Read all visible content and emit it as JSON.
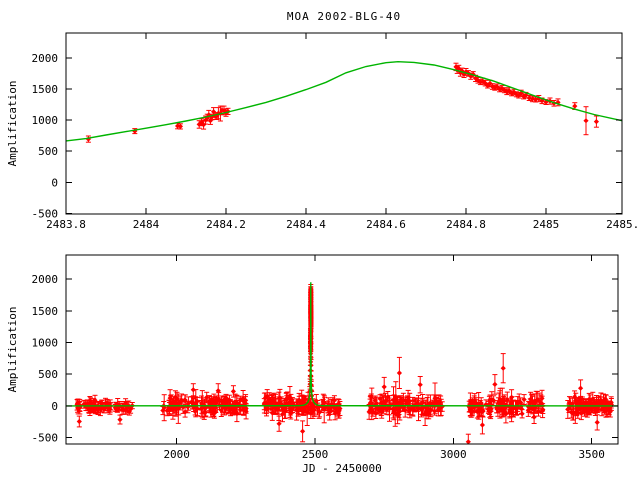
{
  "figure": {
    "title": "MOA 2002-BLG-40",
    "background": "#ffffff",
    "axis_color": "#000000",
    "data_color": "#ff0000",
    "model_color": "#00b400"
  },
  "chart_data": [
    {
      "type": "scatter",
      "name": "peak-zoom-panel",
      "xlabel": "",
      "ylabel": "Amplification",
      "xlim": [
        2483.8,
        2485.19
      ],
      "ylim": [
        -510,
        2400
      ],
      "xticks": [
        2483.8,
        2484,
        2484.2,
        2484.4,
        2484.6,
        2484.8,
        2485,
        2485.2
      ],
      "xtick_labels": [
        "2483.8",
        "2484",
        "2484.2",
        "2484.4",
        "2484.6",
        "2484.8",
        "2485",
        "2485.2"
      ],
      "yticks": [
        -500,
        0,
        500,
        1000,
        1500,
        2000
      ],
      "ytick_labels": [
        "-500",
        "0",
        "500",
        "1000",
        "1500",
        "2000"
      ],
      "legend": null,
      "grid": false,
      "model_curve": [
        [
          2483.8,
          665
        ],
        [
          2483.85,
          702
        ],
        [
          2483.9,
          760
        ],
        [
          2483.95,
          815
        ],
        [
          2484.0,
          870
        ],
        [
          2484.05,
          925
        ],
        [
          2484.1,
          985
        ],
        [
          2484.15,
          1050
        ],
        [
          2484.2,
          1122
        ],
        [
          2484.25,
          1200
        ],
        [
          2484.3,
          1285
        ],
        [
          2484.35,
          1382
        ],
        [
          2484.4,
          1490
        ],
        [
          2484.45,
          1608
        ],
        [
          2484.5,
          1760
        ],
        [
          2484.55,
          1862
        ],
        [
          2484.6,
          1922
        ],
        [
          2484.63,
          1938
        ],
        [
          2484.67,
          1928
        ],
        [
          2484.72,
          1885
        ],
        [
          2484.77,
          1810
        ],
        [
          2484.82,
          1722
        ],
        [
          2484.87,
          1625
        ],
        [
          2484.92,
          1509
        ],
        [
          2484.97,
          1392
        ],
        [
          2485.02,
          1280
        ],
        [
          2485.07,
          1180
        ],
        [
          2485.12,
          1090
        ],
        [
          2485.19,
          990
        ]
      ],
      "points": [
        [
          2483.856,
          694,
          50
        ],
        [
          2483.972,
          823,
          40
        ],
        [
          2484.079,
          905,
          45
        ],
        [
          2484.086,
          898,
          42
        ],
        [
          2484.133,
          930,
          60
        ],
        [
          2484.139,
          965,
          55
        ],
        [
          2484.144,
          925,
          70
        ],
        [
          2484.149,
          1000,
          65
        ],
        [
          2484.153,
          1040,
          55
        ],
        [
          2484.157,
          1085,
          70
        ],
        [
          2484.161,
          990,
          60
        ],
        [
          2484.165,
          1050,
          45
        ],
        [
          2484.169,
          1135,
          65
        ],
        [
          2484.173,
          1060,
          50
        ],
        [
          2484.177,
          1065,
          55
        ],
        [
          2484.181,
          1110,
          90
        ],
        [
          2484.186,
          1105,
          120
        ],
        [
          2484.19,
          1160,
          65
        ],
        [
          2484.195,
          1155,
          70
        ],
        [
          2484.2,
          1120,
          60
        ],
        [
          2484.205,
          1140,
          50
        ],
        [
          2484.775,
          1855,
          60
        ],
        [
          2484.778,
          1805,
          55
        ],
        [
          2484.782,
          1830,
          50
        ],
        [
          2484.786,
          1760,
          55
        ],
        [
          2484.79,
          1790,
          45
        ],
        [
          2484.795,
          1735,
          50
        ],
        [
          2484.8,
          1775,
          55
        ],
        [
          2484.806,
          1750,
          45
        ],
        [
          2484.812,
          1705,
          50
        ],
        [
          2484.818,
          1735,
          45
        ],
        [
          2484.824,
          1670,
          50
        ],
        [
          2484.83,
          1640,
          45
        ],
        [
          2484.836,
          1610,
          40
        ],
        [
          2484.842,
          1625,
          50
        ],
        [
          2484.848,
          1595,
          45
        ],
        [
          2484.854,
          1555,
          40
        ],
        [
          2484.86,
          1590,
          50
        ],
        [
          2484.866,
          1540,
          45
        ],
        [
          2484.872,
          1520,
          40
        ],
        [
          2484.878,
          1535,
          45
        ],
        [
          2484.884,
          1495,
          40
        ],
        [
          2484.89,
          1510,
          45
        ],
        [
          2484.896,
          1480,
          40
        ],
        [
          2484.902,
          1455,
          45
        ],
        [
          2484.908,
          1470,
          50
        ],
        [
          2484.914,
          1430,
          40
        ],
        [
          2484.92,
          1450,
          45
        ],
        [
          2484.926,
          1415,
          40
        ],
        [
          2484.932,
          1400,
          45
        ],
        [
          2484.938,
          1430,
          50
        ],
        [
          2484.944,
          1380,
          40
        ],
        [
          2484.95,
          1400,
          45
        ],
        [
          2484.958,
          1355,
          40
        ],
        [
          2484.966,
          1340,
          45
        ],
        [
          2484.974,
          1330,
          40
        ],
        [
          2484.982,
          1345,
          50
        ],
        [
          2484.99,
          1310,
          45
        ],
        [
          2485.0,
          1290,
          40
        ],
        [
          2485.01,
          1305,
          50
        ],
        [
          2485.02,
          1270,
          45
        ],
        [
          2485.03,
          1285,
          55
        ],
        [
          2485.072,
          1225,
          55
        ],
        [
          2485.1,
          990,
          225
        ],
        [
          2485.126,
          975,
          90
        ]
      ]
    },
    {
      "type": "scatter",
      "name": "full-lightcurve-panel",
      "xlabel": "JD - 2450000",
      "ylabel": "Amplification",
      "xlim": [
        1600,
        3595
      ],
      "ylim": [
        -600,
        2380
      ],
      "xticks": [
        2000,
        2500,
        3000,
        3500
      ],
      "xtick_labels": [
        "2000",
        "2500",
        "3000",
        "3500"
      ],
      "yticks": [
        -500,
        0,
        500,
        1000,
        1500,
        2000
      ],
      "ytick_labels": [
        "-500",
        "0",
        "500",
        "1000",
        "1500",
        "2000"
      ],
      "legend": null,
      "grid": false,
      "baseline": 0,
      "spike_t0": 2484.63,
      "spike_peak": 1950,
      "spike_profile": [
        [
          -40,
          4
        ],
        [
          -25,
          12
        ],
        [
          -16,
          30
        ],
        [
          -10,
          62
        ],
        [
          -6,
          115
        ],
        [
          -3.5,
          205
        ],
        [
          -2,
          320
        ],
        [
          -1.2,
          480
        ],
        [
          -0.7,
          780
        ],
        [
          -0.4,
          1250
        ],
        [
          -0.2,
          1700
        ],
        [
          0,
          1950
        ],
        [
          0.2,
          1700
        ],
        [
          0.4,
          1250
        ],
        [
          0.7,
          780
        ],
        [
          1.2,
          480
        ],
        [
          2,
          320
        ],
        [
          3.5,
          205
        ],
        [
          6,
          115
        ],
        [
          10,
          62
        ],
        [
          16,
          30
        ],
        [
          25,
          12
        ],
        [
          40,
          4
        ]
      ],
      "noise_clusters": [
        {
          "x0": 1632,
          "x1": 1762,
          "n": 48,
          "sd": 55,
          "err_min": 45,
          "err_max": 100,
          "seed": 11
        },
        {
          "x0": 1778,
          "x1": 1840,
          "n": 20,
          "sd": 48,
          "err_min": 45,
          "err_max": 90,
          "seed": 22
        },
        {
          "x0": 1948,
          "x1": 2255,
          "n": 125,
          "sd": 68,
          "err_min": 50,
          "err_max": 130,
          "seed": 33
        },
        {
          "x0": 2315,
          "x1": 2594,
          "n": 125,
          "sd": 65,
          "err_min": 50,
          "err_max": 125,
          "seed": 44
        },
        {
          "x0": 2690,
          "x1": 2960,
          "n": 110,
          "sd": 72,
          "err_min": 55,
          "err_max": 140,
          "seed": 55
        },
        {
          "x0": 3052,
          "x1": 3325,
          "n": 110,
          "sd": 70,
          "err_min": 55,
          "err_max": 140,
          "seed": 66
        },
        {
          "x0": 3412,
          "x1": 3575,
          "n": 85,
          "sd": 62,
          "err_min": 50,
          "err_max": 120,
          "seed": 77
        }
      ],
      "outlier_points": [
        [
          1648,
          -245,
          85
        ],
        [
          1795,
          -215,
          70
        ],
        [
          2060,
          255,
          95
        ],
        [
          2150,
          240,
          110
        ],
        [
          2205,
          230,
          90
        ],
        [
          2370,
          -280,
          120
        ],
        [
          2455,
          -400,
          165
        ],
        [
          2750,
          300,
          150
        ],
        [
          2805,
          520,
          245
        ],
        [
          2880,
          335,
          130
        ],
        [
          3054,
          -565,
          120
        ],
        [
          3105,
          -300,
          140
        ],
        [
          3150,
          340,
          155
        ],
        [
          3180,
          595,
          230
        ],
        [
          3460,
          280,
          130
        ],
        [
          3520,
          -260,
          120
        ]
      ],
      "peak_region_points": [
        [
          2481.2,
          230,
          75
        ],
        [
          2482.3,
          345,
          80
        ],
        [
          2483.0,
          470,
          85
        ],
        [
          2483.4,
          560,
          80
        ],
        [
          2485.5,
          640,
          90
        ],
        [
          2485.9,
          470,
          85
        ],
        [
          2486.4,
          330,
          80
        ],
        [
          2487.0,
          235,
          75
        ],
        [
          2488.0,
          160,
          70
        ]
      ],
      "includes_points_from_panel": 0
    }
  ]
}
